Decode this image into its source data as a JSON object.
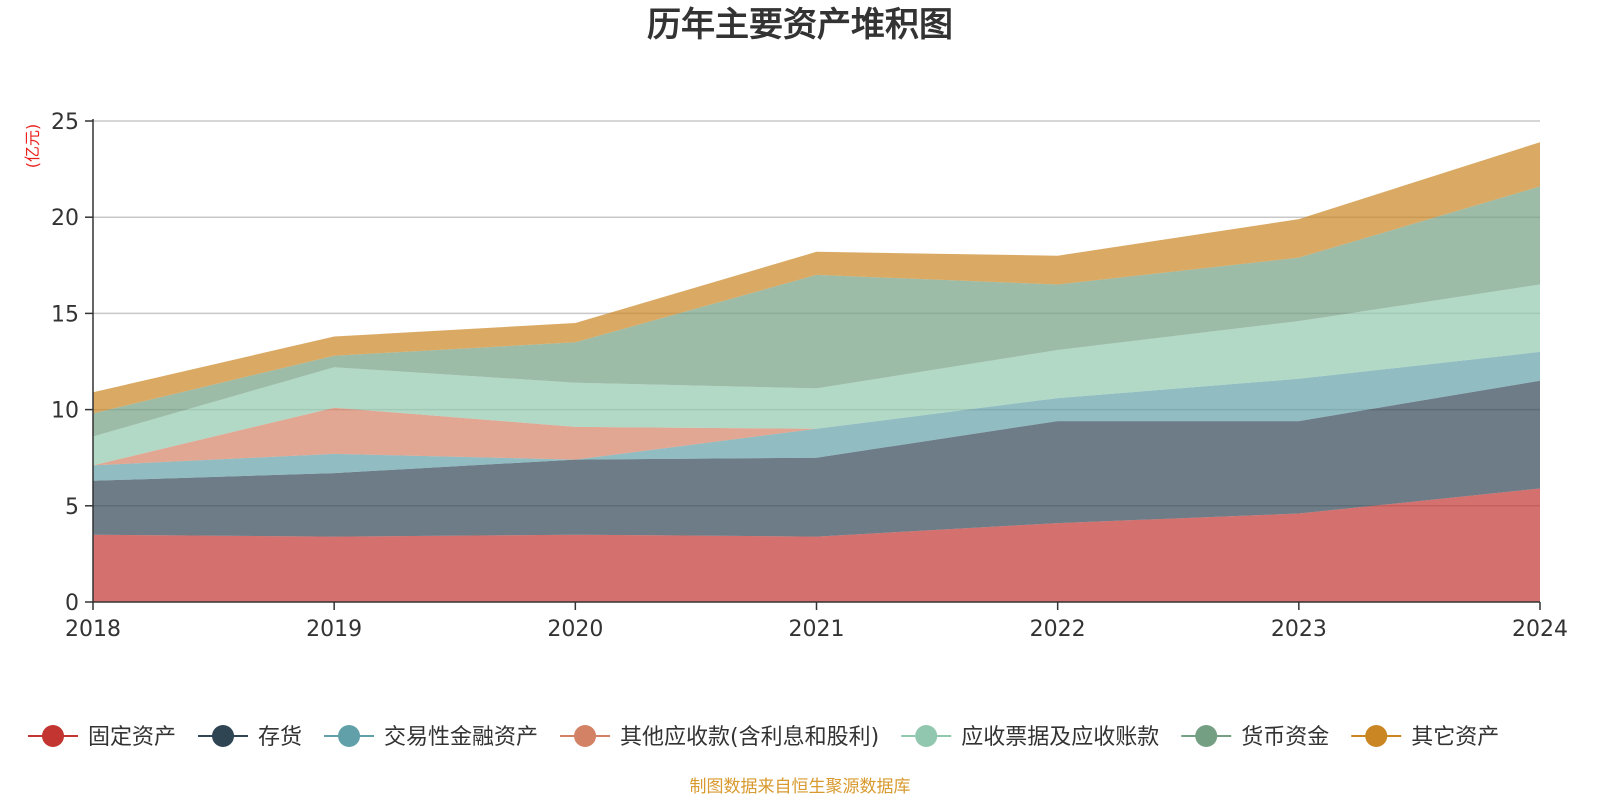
{
  "chart_data": {
    "type": "area",
    "stacked": true,
    "title": "历年主要资产堆积图",
    "ylabel": "(亿元)",
    "xlabel": "",
    "categories": [
      "2018",
      "2019",
      "2020",
      "2021",
      "2022",
      "2023",
      "2024"
    ],
    "ylim": [
      0,
      25
    ],
    "yticks": [
      "0",
      "5",
      "10",
      "15",
      "20",
      "25"
    ],
    "grid": true,
    "legend_position": "bottom",
    "series": [
      {
        "name": "固定资产",
        "color": "#c23531",
        "values": [
          3.5,
          3.4,
          3.5,
          3.4,
          4.1,
          4.6,
          5.9
        ]
      },
      {
        "name": "存货",
        "color": "#2f4554",
        "values": [
          2.8,
          3.3,
          3.9,
          4.1,
          5.3,
          4.8,
          5.6
        ]
      },
      {
        "name": "交易性金融资产",
        "color": "#61a0a8",
        "values": [
          0.8,
          1.0,
          0.0,
          1.5,
          1.2,
          2.2,
          1.5
        ]
      },
      {
        "name": "其他应收款(含利息和股利)",
        "color": "#d48265",
        "values": [
          0.0,
          2.4,
          1.7,
          0.0,
          0.0,
          0.0,
          0.0
        ]
      },
      {
        "name": "应收票据及应收账款",
        "color": "#91c7ae",
        "values": [
          1.5,
          2.1,
          2.3,
          2.1,
          2.5,
          3.0,
          3.5
        ]
      },
      {
        "name": "货币资金",
        "color": "#749f83",
        "values": [
          1.2,
          0.6,
          2.1,
          5.9,
          3.4,
          3.3,
          5.1
        ]
      },
      {
        "name": "其它资产",
        "color": "#ca8622",
        "values": [
          1.1,
          1.0,
          1.0,
          1.2,
          1.5,
          2.0,
          2.3
        ]
      }
    ],
    "source": "制图数据来自恒生聚源数据库",
    "unit_color": "#e8211d",
    "source_color": "#d89a2e"
  }
}
